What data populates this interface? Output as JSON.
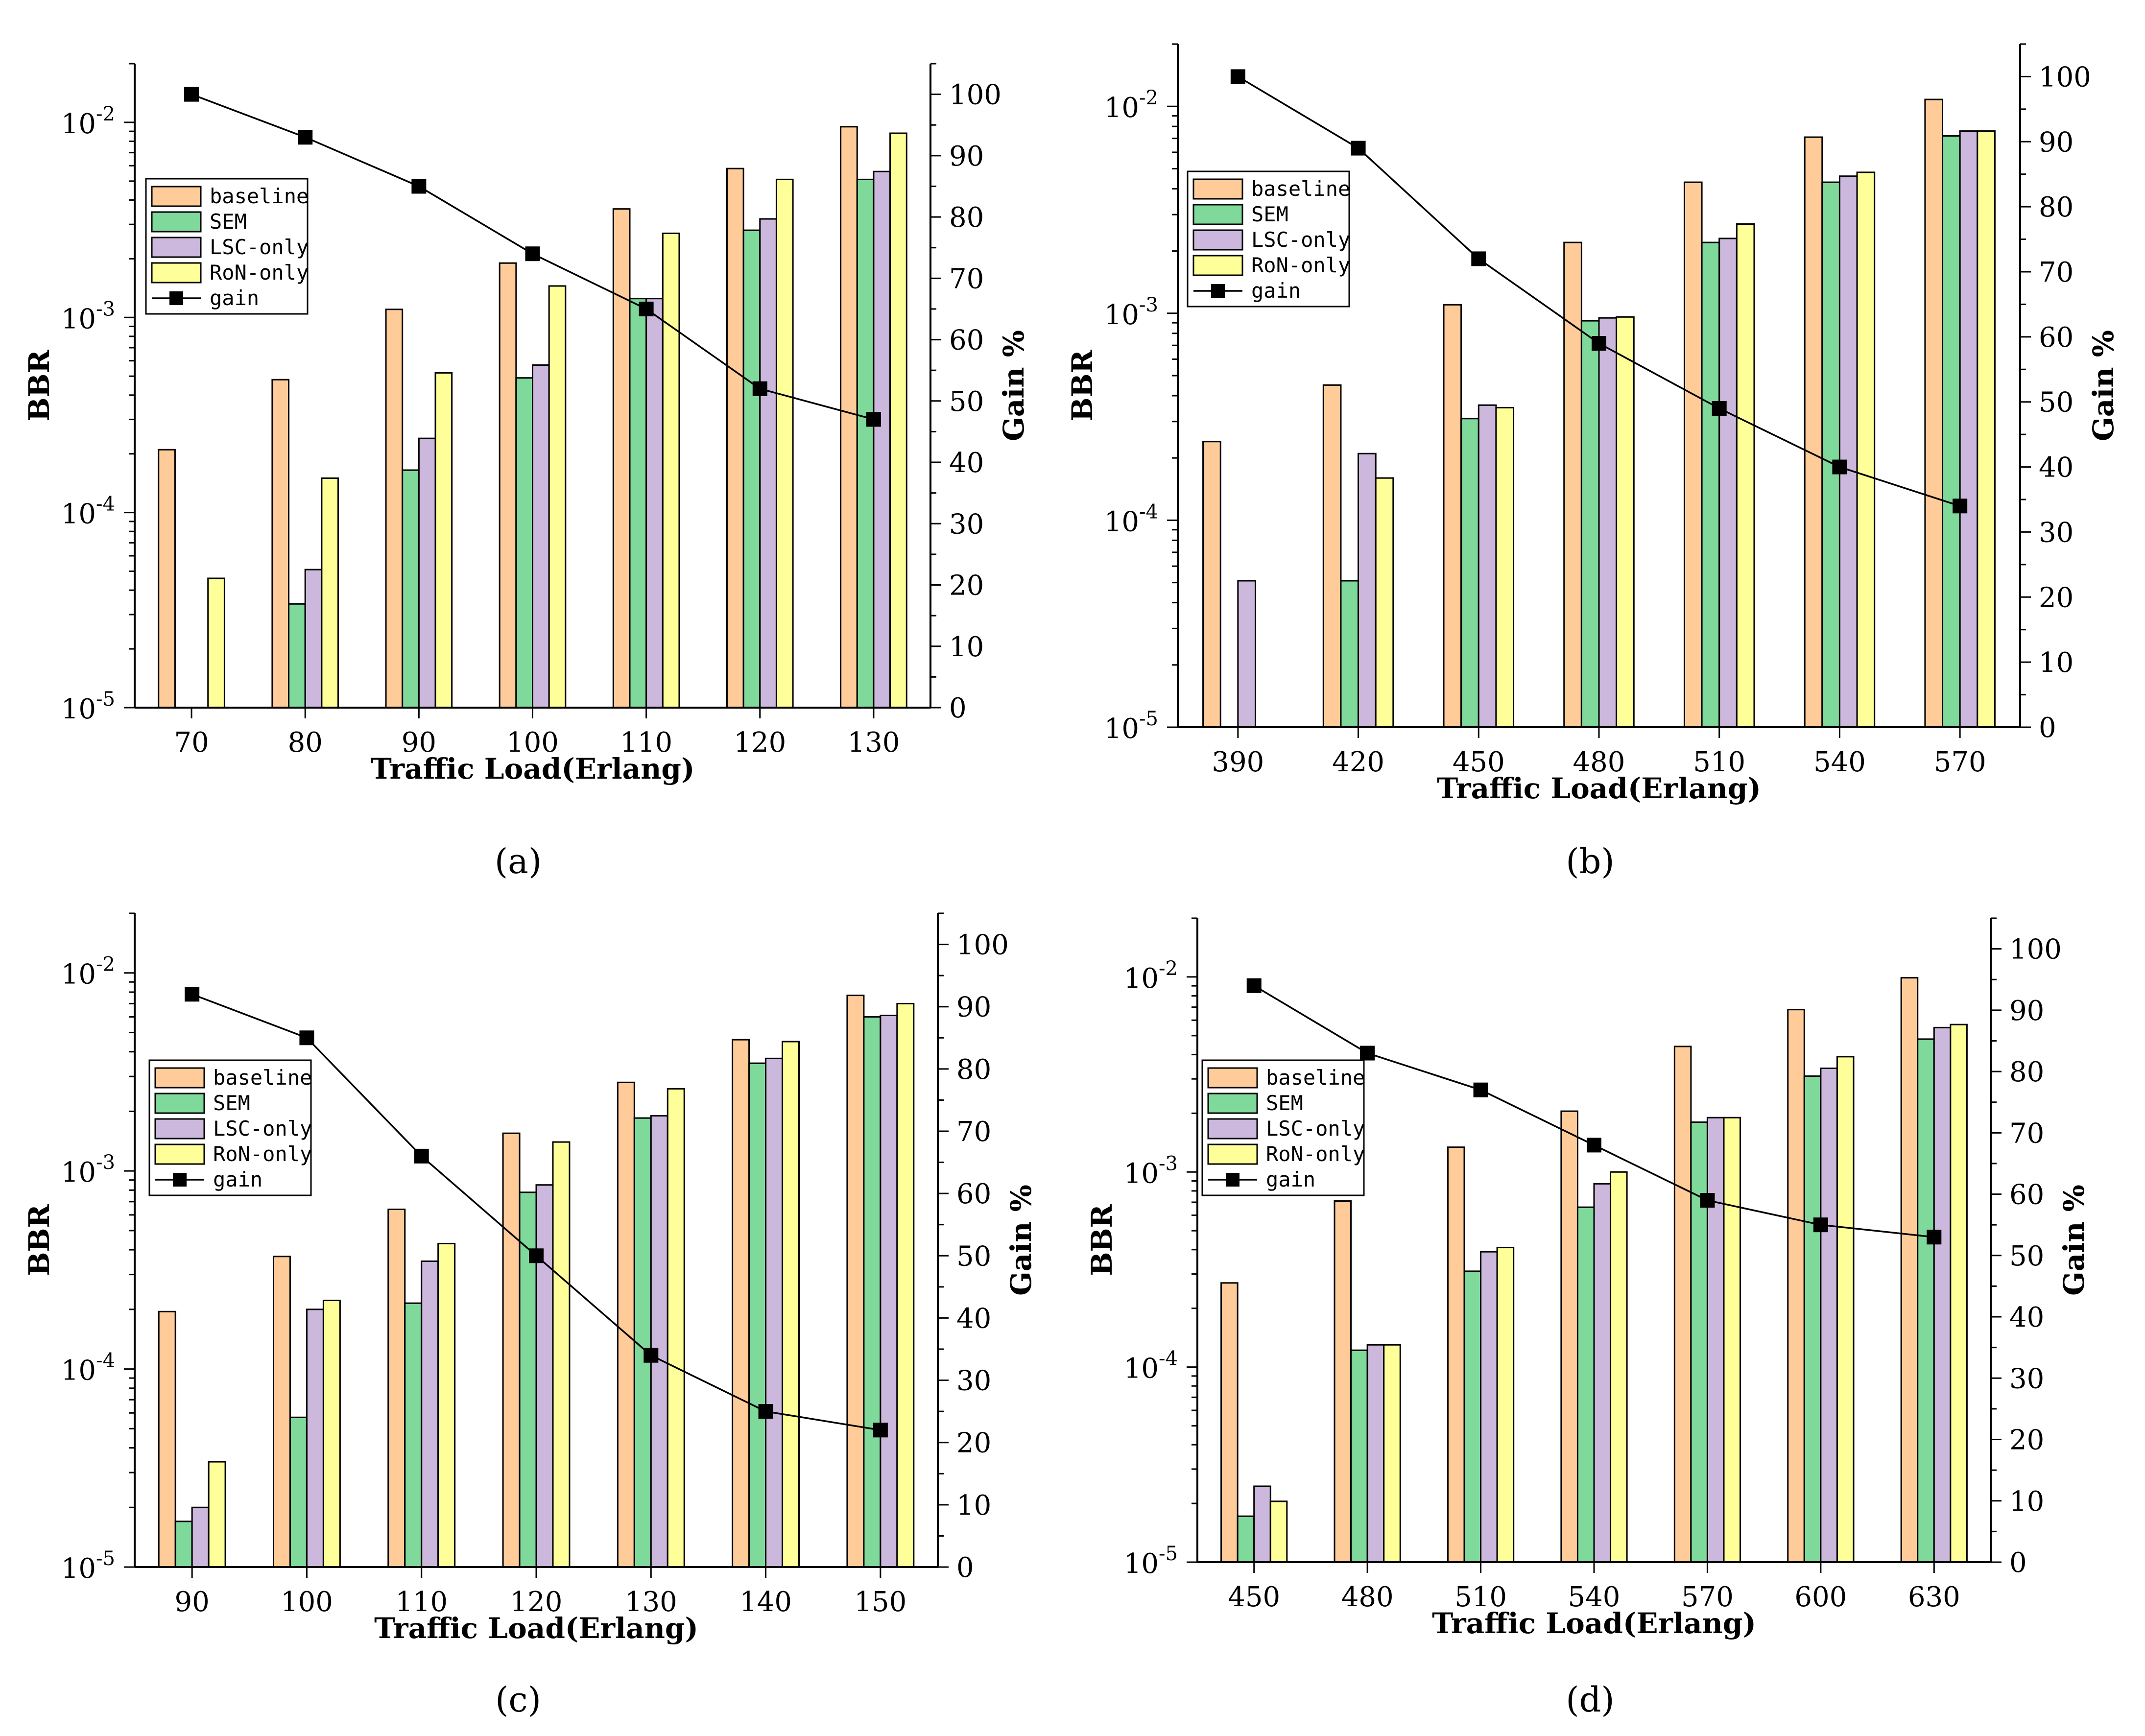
{
  "colors": {
    "baseline": "#FFCC99",
    "SEM": "#7FD99A",
    "LSC-only": "#CCB8DC",
    "RoN-only": "#FFFF99",
    "gain": "#000000"
  },
  "chart_data": [
    {
      "type": "bar",
      "panel": "a",
      "caption": "(a)",
      "xlabel": "Traffic Load(Erlang)",
      "ylabel": "BBR",
      "y2label": "Gain %",
      "yscale": "log",
      "ylim": [
        1e-05,
        0.02
      ],
      "y_ticks": [
        {
          "base": "10",
          "exp": "-5"
        },
        {
          "base": "10",
          "exp": "-4"
        },
        {
          "base": "10",
          "exp": "-3"
        },
        {
          "base": "10",
          "exp": "-2"
        }
      ],
      "y2lim": [
        0,
        105
      ],
      "y2_ticks": [
        "0",
        "10",
        "20",
        "30",
        "40",
        "50",
        "60",
        "70",
        "80",
        "90",
        "100"
      ],
      "categories": [
        "70",
        "80",
        "90",
        "100",
        "110",
        "120",
        "130"
      ],
      "series": [
        {
          "name": "baseline",
          "values": [
            0.00021,
            0.00048,
            0.0011,
            0.0019,
            0.0036,
            0.0058,
            0.0095
          ]
        },
        {
          "name": "SEM",
          "values": [
            null,
            3.4e-05,
            0.000165,
            0.00049,
            0.00125,
            0.0028,
            0.0051
          ]
        },
        {
          "name": "LSC-only",
          "values": [
            null,
            5.1e-05,
            0.00024,
            0.00057,
            0.00125,
            0.0032,
            0.0056
          ]
        },
        {
          "name": "RoN-only",
          "values": [
            4.6e-05,
            0.00015,
            0.00052,
            0.00145,
            0.0027,
            0.0051,
            0.0088
          ]
        }
      ],
      "gain": {
        "name": "gain",
        "values": [
          100,
          93,
          85,
          74,
          65,
          52,
          47
        ]
      },
      "legend": [
        "baseline",
        "SEM",
        "LSC-only",
        "RoN-only",
        "gain"
      ]
    },
    {
      "type": "bar",
      "panel": "b",
      "caption": "(b)",
      "xlabel": "Traffic Load(Erlang)",
      "ylabel": "BBR",
      "y2label": "Gain %",
      "yscale": "log",
      "ylim": [
        1e-05,
        0.02
      ],
      "y_ticks": [
        {
          "base": "10",
          "exp": "-5"
        },
        {
          "base": "10",
          "exp": "-4"
        },
        {
          "base": "10",
          "exp": "-3"
        },
        {
          "base": "10",
          "exp": "-2"
        }
      ],
      "y2lim": [
        0,
        105
      ],
      "y2_ticks": [
        "0",
        "10",
        "20",
        "30",
        "40",
        "50",
        "60",
        "70",
        "80",
        "90",
        "100"
      ],
      "categories": [
        "390",
        "420",
        "450",
        "480",
        "510",
        "540",
        "570"
      ],
      "series": [
        {
          "name": "baseline",
          "values": [
            0.00024,
            0.00045,
            0.0011,
            0.0022,
            0.0043,
            0.0071,
            0.0108
          ]
        },
        {
          "name": "SEM",
          "values": [
            null,
            5.1e-05,
            0.00031,
            0.00092,
            0.0022,
            0.0043,
            0.0072
          ]
        },
        {
          "name": "LSC-only",
          "values": [
            5.1e-05,
            0.00021,
            0.00036,
            0.00095,
            0.0023,
            0.0046,
            0.0076
          ]
        },
        {
          "name": "RoN-only",
          "values": [
            null,
            0.00016,
            0.00035,
            0.00096,
            0.0027,
            0.0048,
            0.0076
          ]
        }
      ],
      "gain": {
        "name": "gain",
        "values": [
          100,
          89,
          72,
          59,
          49,
          40,
          34
        ]
      },
      "legend": [
        "baseline",
        "SEM",
        "LSC-only",
        "RoN-only",
        "gain"
      ]
    },
    {
      "type": "bar",
      "panel": "c",
      "caption": "(c)",
      "xlabel": "Traffic Load(Erlang)",
      "ylabel": "BBR",
      "y2label": "Gain %",
      "yscale": "log",
      "ylim": [
        1e-05,
        0.02
      ],
      "y_ticks": [
        {
          "base": "10",
          "exp": "-5"
        },
        {
          "base": "10",
          "exp": "-4"
        },
        {
          "base": "10",
          "exp": "-3"
        },
        {
          "base": "10",
          "exp": "-2"
        }
      ],
      "y2lim": [
        0,
        105
      ],
      "y2_ticks": [
        "0",
        "10",
        "20",
        "30",
        "40",
        "50",
        "60",
        "70",
        "80",
        "90",
        "100"
      ],
      "categories": [
        "90",
        "100",
        "110",
        "120",
        "130",
        "140",
        "150"
      ],
      "series": [
        {
          "name": "baseline",
          "values": [
            0.000195,
            0.00037,
            0.00064,
            0.00155,
            0.0028,
            0.0046,
            0.0077
          ]
        },
        {
          "name": "SEM",
          "values": [
            1.7e-05,
            5.7e-05,
            0.000215,
            0.00078,
            0.00185,
            0.0035,
            0.006
          ]
        },
        {
          "name": "LSC-only",
          "values": [
            2e-05,
            0.0002,
            0.00035,
            0.00085,
            0.0019,
            0.0037,
            0.0061
          ]
        },
        {
          "name": "RoN-only",
          "values": [
            3.4e-05,
            0.000222,
            0.00043,
            0.0014,
            0.0026,
            0.0045,
            0.007
          ]
        }
      ],
      "gain": {
        "name": "gain",
        "values": [
          92,
          85,
          66,
          50,
          34,
          25,
          22
        ]
      },
      "legend": [
        "baseline",
        "SEM",
        "LSC-only",
        "RoN-only",
        "gain"
      ]
    },
    {
      "type": "bar",
      "panel": "d",
      "caption": "(d)",
      "xlabel": "Traffic Load(Erlang)",
      "ylabel": "BBR",
      "y2label": "Gain %",
      "yscale": "log",
      "ylim": [
        1e-05,
        0.02
      ],
      "y_ticks": [
        {
          "base": "10",
          "exp": "-5"
        },
        {
          "base": "10",
          "exp": "-4"
        },
        {
          "base": "10",
          "exp": "-3"
        },
        {
          "base": "10",
          "exp": "-2"
        }
      ],
      "y2lim": [
        0,
        105
      ],
      "y2_ticks": [
        "0",
        "10",
        "20",
        "30",
        "40",
        "50",
        "60",
        "70",
        "80",
        "90",
        "100"
      ],
      "categories": [
        "450",
        "480",
        "510",
        "540",
        "570",
        "600",
        "630"
      ],
      "series": [
        {
          "name": "baseline",
          "values": [
            0.00027,
            0.00071,
            0.00134,
            0.00205,
            0.0044,
            0.0068,
            0.0099
          ]
        },
        {
          "name": "SEM",
          "values": [
            1.72e-05,
            0.000122,
            0.00031,
            0.00066,
            0.0018,
            0.0031,
            0.0048
          ]
        },
        {
          "name": "LSC-only",
          "values": [
            2.45e-05,
            0.00013,
            0.00039,
            0.00087,
            0.0019,
            0.0034,
            0.0055
          ]
        },
        {
          "name": "RoN-only",
          "values": [
            2.05e-05,
            0.00013,
            0.00041,
            0.001,
            0.0019,
            0.0039,
            0.0057
          ]
        }
      ],
      "gain": {
        "name": "gain",
        "values": [
          94,
          83,
          77,
          68,
          59,
          55,
          53
        ]
      },
      "legend": [
        "baseline",
        "SEM",
        "LSC-only",
        "RoN-only",
        "gain"
      ]
    }
  ]
}
